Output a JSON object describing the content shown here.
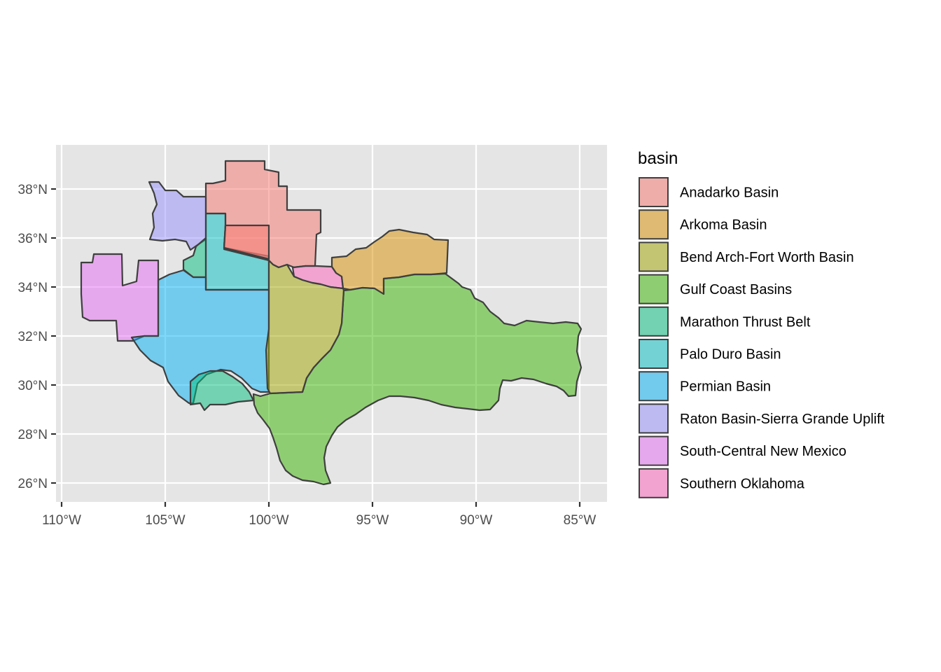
{
  "legend": {
    "title": "basin",
    "items": [
      {
        "key": "anadarko",
        "label": "Anadarko Basin",
        "color": "#F8766D"
      },
      {
        "key": "arkoma",
        "label": "Arkoma Basin",
        "color": "#D89000"
      },
      {
        "key": "bend_arch",
        "label": "Bend Arch-Fort Worth Basin",
        "color": "#A3A500"
      },
      {
        "key": "gulf_coast",
        "label": "Gulf Coast Basins",
        "color": "#39B600"
      },
      {
        "key": "marathon",
        "label": "Marathon Thrust Belt",
        "color": "#00BF7D"
      },
      {
        "key": "palo_duro",
        "label": "Palo Duro Basin",
        "color": "#00BFC4"
      },
      {
        "key": "permian",
        "label": "Permian Basin",
        "color": "#00B0F6"
      },
      {
        "key": "raton",
        "label": "Raton Basin-Sierra Grande Uplift",
        "color": "#9590FF"
      },
      {
        "key": "south_central_nm",
        "label": "South-Central New Mexico",
        "color": "#E76BF3"
      },
      {
        "key": "southern_oklahoma",
        "label": "Southern Oklahoma",
        "color": "#FF62BC"
      }
    ]
  },
  "axes": {
    "x_ticks": [
      "110°W",
      "105°W",
      "100°W",
      "95°W",
      "90°W",
      "85°W"
    ],
    "y_ticks": [
      "26°N",
      "28°N",
      "30°N",
      "32°N",
      "34°N",
      "36°N",
      "38°N"
    ]
  },
  "style": {
    "panel_background": "#E5E5E5",
    "grid_color": "#FFFFFF",
    "outline_color": "#3F3F3F",
    "fill_opacity": 0.5
  }
}
